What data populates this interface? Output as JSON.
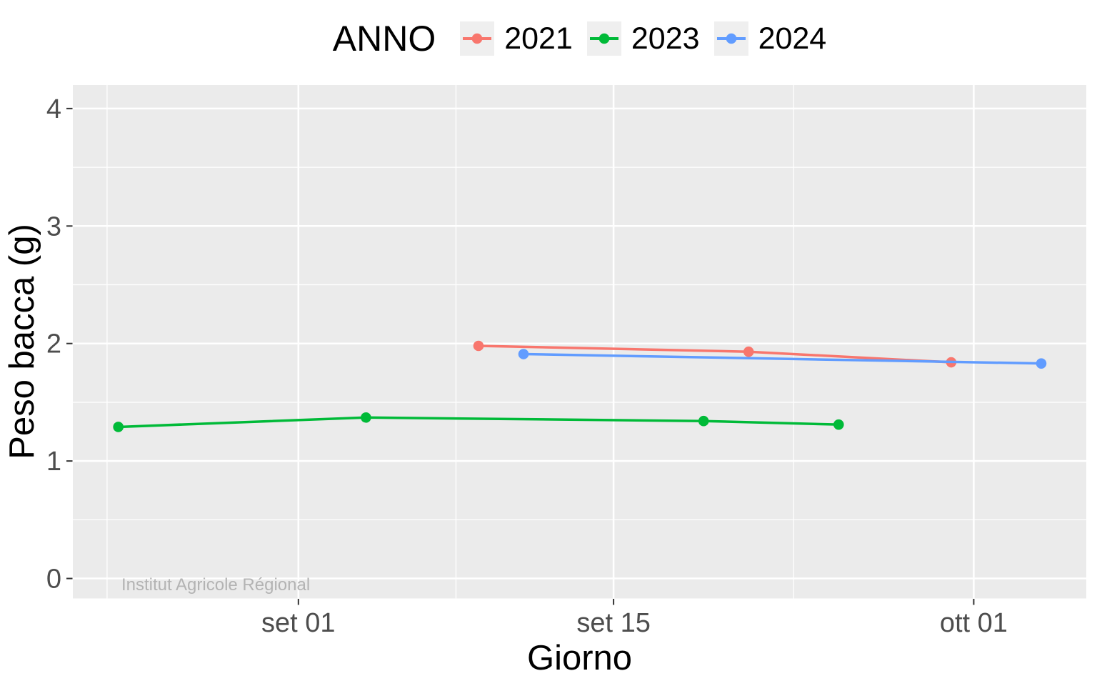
{
  "chart_data": {
    "type": "line",
    "title": "",
    "legend_title": "ANNO",
    "legend_position": "top",
    "grid": true,
    "x_axis": {
      "label": "Giorno",
      "day_zero_label": "set 01",
      "tick_labels": [
        "set 01",
        "set 15",
        "ott 01"
      ],
      "major_tick_days": [
        0,
        14,
        30
      ],
      "minor_tick_days": [
        -8.5,
        7,
        22
      ],
      "domain_days": [
        -10.02,
        35.0
      ]
    },
    "y_axis": {
      "label": "Peso bacca (g)",
      "major_ticks": [
        "0",
        "1",
        "2",
        "3",
        "4"
      ],
      "major_tick_values": [
        0,
        1,
        2,
        3,
        4
      ],
      "minor_tick_values": [
        0.5,
        1.5,
        2.5,
        3.5
      ],
      "domain": [
        -0.17,
        4.2
      ]
    },
    "series": [
      {
        "name": "2021",
        "color": "#F8766D",
        "points": [
          {
            "day": 8,
            "date": "set 09",
            "value": 1.98
          },
          {
            "day": 20,
            "date": "set 21",
            "value": 1.93
          },
          {
            "day": 29,
            "date": "set 30",
            "value": 1.84
          }
        ]
      },
      {
        "name": "2023",
        "color": "#00BA38",
        "points": [
          {
            "day": -8,
            "date": "ago 24",
            "value": 1.29
          },
          {
            "day": 3,
            "date": "set 04",
            "value": 1.37
          },
          {
            "day": 18,
            "date": "set 19",
            "value": 1.34
          },
          {
            "day": 24,
            "date": "set 25",
            "value": 1.31
          }
        ]
      },
      {
        "name": "2024",
        "color": "#619CFF",
        "points": [
          {
            "day": 10,
            "date": "set 11",
            "value": 1.91
          },
          {
            "day": 33,
            "date": "ott 04",
            "value": 1.83
          }
        ]
      }
    ],
    "watermark": "Institut Agricole Régional",
    "colors": {
      "panel_bg": "#EBEBEB",
      "grid": "#FFFFFF",
      "tick_text": "#4D4D4D",
      "tick_mark": "#333333",
      "axis_text": "#000000",
      "legend_key_bg": "#EFEFEF",
      "watermark": "#B3B3B3"
    }
  }
}
